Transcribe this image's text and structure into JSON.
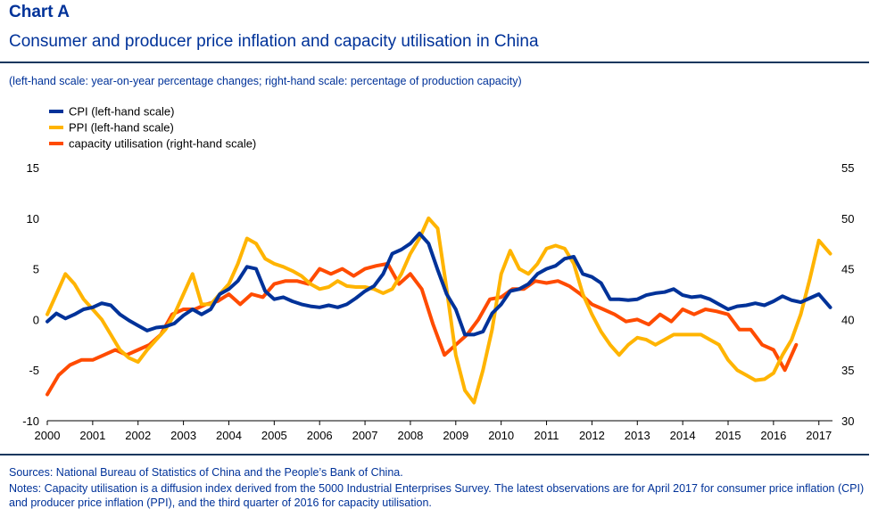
{
  "header": {
    "chart_label": "Chart A",
    "title": "Consumer and producer price inflation and capacity utilisation in China",
    "subtitle": "(left-hand scale: year-on-year percentage changes; right-hand scale: percentage of production capacity)"
  },
  "footer": {
    "sources": "Sources: National Bureau of Statistics of China and the People’s Bank of China.",
    "notes": "Notes: Capacity utilisation is a diffusion index derived from the 5000 Industrial Enterprises Survey. The latest observations are for April 2017 for consumer price inflation (CPI) and producer price inflation (PPI), and the third quarter of 2016 for capacity utilisation."
  },
  "chart_data": {
    "type": "line",
    "title": "Consumer and producer price inflation and capacity utilisation in China",
    "x_ticks": [
      "2000",
      "2001",
      "2002",
      "2003",
      "2004",
      "2005",
      "2006",
      "2007",
      "2008",
      "2009",
      "2010",
      "2011",
      "2012",
      "2013",
      "2014",
      "2015",
      "2016",
      "2017"
    ],
    "xlim": [
      2000,
      2017.3
    ],
    "y_left": {
      "ticks": [
        15,
        10,
        5,
        0,
        -5,
        -10
      ],
      "ylim": [
        -10,
        15
      ]
    },
    "y_right": {
      "ticks": [
        55,
        50,
        45,
        40,
        35,
        30
      ],
      "ylim": [
        30,
        55
      ]
    },
    "grid": false,
    "legend_position": "top-left",
    "series": [
      {
        "name": "CPI (left-hand scale)",
        "axis": "left",
        "color": "#003299",
        "x": [
          2000.0,
          2000.2,
          2000.4,
          2000.6,
          2000.8,
          2001.0,
          2001.2,
          2001.4,
          2001.6,
          2001.8,
          2002.0,
          2002.2,
          2002.4,
          2002.6,
          2002.8,
          2003.0,
          2003.2,
          2003.4,
          2003.6,
          2003.8,
          2004.0,
          2004.2,
          2004.4,
          2004.6,
          2004.8,
          2005.0,
          2005.2,
          2005.4,
          2005.6,
          2005.8,
          2006.0,
          2006.2,
          2006.4,
          2006.6,
          2006.8,
          2007.0,
          2007.2,
          2007.4,
          2007.6,
          2007.8,
          2008.0,
          2008.2,
          2008.4,
          2008.6,
          2008.8,
          2009.0,
          2009.2,
          2009.4,
          2009.6,
          2009.8,
          2010.0,
          2010.2,
          2010.4,
          2010.6,
          2010.8,
          2011.0,
          2011.2,
          2011.4,
          2011.6,
          2011.8,
          2012.0,
          2012.2,
          2012.4,
          2012.6,
          2012.8,
          2013.0,
          2013.2,
          2013.4,
          2013.6,
          2013.8,
          2014.0,
          2014.2,
          2014.4,
          2014.6,
          2014.8,
          2015.0,
          2015.2,
          2015.4,
          2015.6,
          2015.8,
          2016.0,
          2016.2,
          2016.4,
          2016.6,
          2016.8,
          2017.0,
          2017.25
        ],
        "y": [
          -0.2,
          0.6,
          0.1,
          0.5,
          1.0,
          1.2,
          1.6,
          1.4,
          0.5,
          -0.1,
          -0.6,
          -1.1,
          -0.8,
          -0.7,
          -0.4,
          0.4,
          1.0,
          0.5,
          1.0,
          2.5,
          3.0,
          3.8,
          5.2,
          5.0,
          2.8,
          2.0,
          2.2,
          1.8,
          1.5,
          1.3,
          1.2,
          1.4,
          1.2,
          1.5,
          2.1,
          2.8,
          3.3,
          4.5,
          6.5,
          6.9,
          7.5,
          8.5,
          7.5,
          4.9,
          2.5,
          1.0,
          -1.5,
          -1.5,
          -1.2,
          0.6,
          1.5,
          2.8,
          3.0,
          3.5,
          4.5,
          5.0,
          5.3,
          6.0,
          6.2,
          4.5,
          4.2,
          3.6,
          2.0,
          2.0,
          1.9,
          2.0,
          2.4,
          2.6,
          2.7,
          3.0,
          2.4,
          2.2,
          2.3,
          2.0,
          1.5,
          1.0,
          1.3,
          1.4,
          1.6,
          1.4,
          1.8,
          2.3,
          1.9,
          1.7,
          2.1,
          2.5,
          1.2
        ]
      },
      {
        "name": "PPI (left-hand scale)",
        "axis": "left",
        "color": "#ffb400",
        "x": [
          2000.0,
          2000.2,
          2000.4,
          2000.6,
          2000.8,
          2001.0,
          2001.2,
          2001.4,
          2001.6,
          2001.8,
          2002.0,
          2002.2,
          2002.4,
          2002.6,
          2002.8,
          2003.0,
          2003.2,
          2003.4,
          2003.6,
          2003.8,
          2004.0,
          2004.2,
          2004.4,
          2004.6,
          2004.8,
          2005.0,
          2005.2,
          2005.4,
          2005.6,
          2005.8,
          2006.0,
          2006.2,
          2006.4,
          2006.6,
          2006.8,
          2007.0,
          2007.2,
          2007.4,
          2007.6,
          2007.8,
          2008.0,
          2008.2,
          2008.4,
          2008.6,
          2008.8,
          2009.0,
          2009.2,
          2009.4,
          2009.6,
          2009.8,
          2010.0,
          2010.2,
          2010.4,
          2010.6,
          2010.8,
          2011.0,
          2011.2,
          2011.4,
          2011.6,
          2011.8,
          2012.0,
          2012.2,
          2012.4,
          2012.6,
          2012.8,
          2013.0,
          2013.2,
          2013.4,
          2013.6,
          2013.8,
          2014.0,
          2014.2,
          2014.4,
          2014.6,
          2014.8,
          2015.0,
          2015.2,
          2015.4,
          2015.6,
          2015.8,
          2016.0,
          2016.2,
          2016.4,
          2016.6,
          2016.8,
          2017.0,
          2017.25
        ],
        "y": [
          0.5,
          2.5,
          4.5,
          3.5,
          2.0,
          1.0,
          0.0,
          -1.5,
          -3.0,
          -3.8,
          -4.2,
          -3.0,
          -2.0,
          -1.0,
          0.5,
          2.5,
          4.5,
          1.5,
          1.5,
          2.5,
          3.5,
          5.5,
          8.0,
          7.5,
          6.0,
          5.5,
          5.2,
          4.8,
          4.3,
          3.5,
          3.0,
          3.2,
          3.8,
          3.3,
          3.2,
          3.2,
          3.0,
          2.6,
          3.0,
          4.5,
          6.5,
          8.0,
          10.0,
          9.0,
          3.0,
          -3.5,
          -7.0,
          -8.2,
          -5.0,
          -1.0,
          4.5,
          6.8,
          5.0,
          4.5,
          5.5,
          7.0,
          7.3,
          7.0,
          5.5,
          2.5,
          0.5,
          -1.2,
          -2.5,
          -3.5,
          -2.5,
          -1.8,
          -2.0,
          -2.5,
          -2.0,
          -1.5,
          -1.5,
          -1.5,
          -1.5,
          -2.0,
          -2.5,
          -4.0,
          -5.0,
          -5.5,
          -6.0,
          -5.9,
          -5.3,
          -3.5,
          -2.0,
          0.5,
          4.0,
          7.8,
          6.5
        ]
      },
      {
        "name": "capacity utilisation (right-hand scale)",
        "axis": "right",
        "color": "#ff4b00",
        "x": [
          2000.0,
          2000.25,
          2000.5,
          2000.75,
          2001.0,
          2001.25,
          2001.5,
          2001.75,
          2002.0,
          2002.25,
          2002.5,
          2002.75,
          2003.0,
          2003.25,
          2003.5,
          2003.75,
          2004.0,
          2004.25,
          2004.5,
          2004.75,
          2005.0,
          2005.25,
          2005.5,
          2005.75,
          2006.0,
          2006.25,
          2006.5,
          2006.75,
          2007.0,
          2007.25,
          2007.5,
          2007.75,
          2008.0,
          2008.25,
          2008.5,
          2008.75,
          2009.0,
          2009.25,
          2009.5,
          2009.75,
          2010.0,
          2010.25,
          2010.5,
          2010.75,
          2011.0,
          2011.25,
          2011.5,
          2011.75,
          2012.0,
          2012.25,
          2012.5,
          2012.75,
          2013.0,
          2013.25,
          2013.5,
          2013.75,
          2014.0,
          2014.25,
          2014.5,
          2014.75,
          2015.0,
          2015.25,
          2015.5,
          2015.75,
          2016.0,
          2016.25,
          2016.5
        ],
        "y": [
          32.6,
          34.5,
          35.5,
          36.0,
          36.0,
          36.5,
          37.0,
          36.5,
          37.0,
          37.5,
          38.5,
          40.5,
          41.0,
          41.0,
          41.5,
          41.8,
          42.5,
          41.5,
          42.5,
          42.2,
          43.5,
          43.8,
          43.8,
          43.5,
          45.0,
          44.5,
          45.0,
          44.3,
          45.0,
          45.3,
          45.5,
          43.5,
          44.5,
          43.0,
          39.5,
          36.5,
          37.5,
          38.5,
          40.0,
          42.0,
          42.2,
          43.0,
          43.0,
          43.8,
          43.6,
          43.8,
          43.3,
          42.5,
          41.5,
          41.0,
          40.5,
          39.8,
          40.0,
          39.5,
          40.5,
          39.8,
          41.0,
          40.5,
          41.0,
          40.8,
          40.5,
          39.0,
          39.0,
          37.5,
          37.0,
          35.0,
          37.5
        ]
      }
    ]
  }
}
